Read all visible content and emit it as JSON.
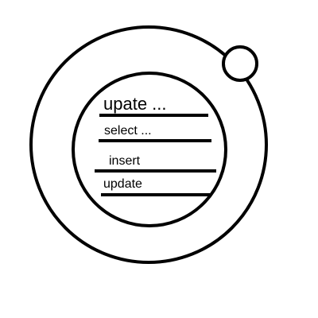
{
  "diagram": {
    "title": "upate ...",
    "items": [
      {
        "label": "select ..."
      },
      {
        "label": "insert"
      },
      {
        "label": "update"
      }
    ],
    "stroke_color": "#000000",
    "background_color": "#ffffff"
  }
}
